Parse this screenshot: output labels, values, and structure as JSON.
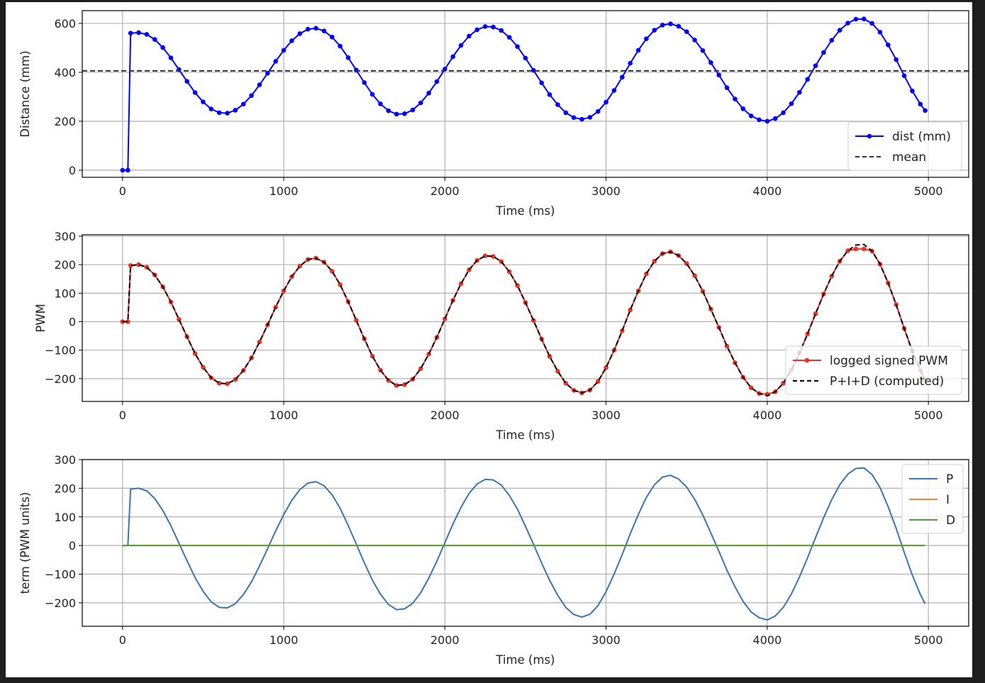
{
  "figure": {
    "background": "#ffffff",
    "frame": "#1e1e1e"
  },
  "chart_data": [
    {
      "type": "line",
      "title": "",
      "xlabel": "Time (ms)",
      "ylabel": "Distance (mm)",
      "xlim": [
        -250,
        5250
      ],
      "ylim": [
        -29,
        652
      ],
      "xticks": [
        0,
        1000,
        2000,
        3000,
        4000,
        5000
      ],
      "yticks": [
        0,
        200,
        400,
        600
      ],
      "grid": true,
      "legend_position": "lower right",
      "x": [
        0,
        33,
        50,
        100,
        150,
        200,
        250,
        300,
        350,
        400,
        450,
        500,
        550,
        600,
        650,
        700,
        750,
        800,
        850,
        900,
        950,
        1000,
        1050,
        1100,
        1150,
        1200,
        1250,
        1300,
        1350,
        1400,
        1450,
        1500,
        1550,
        1600,
        1650,
        1700,
        1750,
        1800,
        1850,
        1900,
        1950,
        2000,
        2050,
        2100,
        2150,
        2200,
        2250,
        2300,
        2350,
        2400,
        2450,
        2500,
        2550,
        2600,
        2650,
        2700,
        2750,
        2800,
        2850,
        2900,
        2950,
        3000,
        3050,
        3100,
        3150,
        3200,
        3250,
        3300,
        3350,
        3400,
        3450,
        3500,
        3550,
        3600,
        3650,
        3700,
        3750,
        3800,
        3850,
        3900,
        3950,
        4000,
        4050,
        4100,
        4150,
        4200,
        4250,
        4300,
        4350,
        4400,
        4450,
        4500,
        4550,
        4600,
        4650,
        4700,
        4750,
        4800,
        4850,
        4900,
        4950,
        4980
      ],
      "series": [
        {
          "name": "dist (mm)",
          "color": "#0000ff",
          "marker": "o",
          "values": [
            0,
            0,
            560,
            562,
            555,
            534,
            501,
            459,
            411,
            363,
            317,
            279,
            250,
            235,
            233,
            245,
            270,
            305,
            349,
            396,
            445,
            490,
            529,
            558,
            576,
            580,
            569,
            544,
            507,
            460,
            409,
            358,
            310,
            271,
            243,
            229,
            231,
            246,
            275,
            315,
            362,
            413,
            464,
            510,
            548,
            574,
            587,
            585,
            571,
            543,
            505,
            458,
            408,
            357,
            309,
            268,
            235,
            215,
            208,
            216,
            240,
            278,
            326,
            380,
            437,
            490,
            537,
            572,
            593,
            598,
            588,
            566,
            532,
            489,
            440,
            389,
            337,
            291,
            251,
            222,
            206,
            200,
            211,
            235,
            272,
            318,
            371,
            427,
            481,
            531,
            572,
            601,
            617,
            618,
            600,
            564,
            512,
            452,
            386,
            324,
            270,
            244
          ]
        },
        {
          "name": "mean",
          "color": "#333333",
          "dash": "dashed",
          "constant": 406
        }
      ]
    },
    {
      "type": "line",
      "xlabel": "Time (ms)",
      "ylabel": "PWM",
      "xlim": [
        -250,
        5250
      ],
      "ylim": [
        -280,
        305
      ],
      "xticks": [
        0,
        1000,
        2000,
        3000,
        4000,
        5000
      ],
      "yticks": [
        -200,
        -100,
        0,
        100,
        200,
        300
      ],
      "grid": true,
      "legend_position": "lower right",
      "series": [
        {
          "name": "logged signed PWM",
          "color": "#ee3322",
          "marker": "o",
          "values": [
            0,
            0,
            197,
            200,
            191,
            164,
            122,
            69,
            8,
            -53,
            -112,
            -160,
            -197,
            -216,
            -218,
            -203,
            -171,
            -127,
            -71,
            -11,
            51,
            108,
            158,
            195,
            218,
            223,
            209,
            177,
            130,
            70,
            5,
            -60,
            -121,
            -170,
            -206,
            -224,
            -221,
            -202,
            -165,
            -114,
            -55,
            10,
            75,
            133,
            182,
            215,
            231,
            229,
            211,
            175,
            127,
            67,
            4,
            -61,
            -122,
            -174,
            -216,
            -241,
            -250,
            -240,
            -210,
            -161,
            -100,
            -32,
            41,
            108,
            168,
            212,
            239,
            245,
            232,
            204,
            161,
            107,
            44,
            -20,
            -86,
            -144,
            -195,
            -232,
            -252,
            -255,
            -246,
            -216,
            -169,
            -110,
            -43,
            28,
            97,
            160,
            212,
            249,
            255,
            255,
            248,
            202,
            136,
            60,
            -24,
            -103,
            -171,
            -204
          ]
        },
        {
          "name": "P+I+D (computed)",
          "color": "#000000",
          "dash": "dashed",
          "values": [
            0,
            0,
            197,
            200,
            191,
            164,
            122,
            69,
            8,
            -53,
            -112,
            -160,
            -197,
            -216,
            -218,
            -203,
            -171,
            -127,
            -71,
            -11,
            51,
            108,
            158,
            195,
            218,
            223,
            209,
            177,
            130,
            70,
            5,
            -60,
            -121,
            -170,
            -206,
            -224,
            -221,
            -202,
            -165,
            -114,
            -55,
            10,
            75,
            133,
            182,
            215,
            231,
            229,
            211,
            175,
            127,
            67,
            4,
            -61,
            -122,
            -174,
            -216,
            -241,
            -250,
            -240,
            -210,
            -161,
            -100,
            -32,
            41,
            108,
            168,
            212,
            239,
            245,
            232,
            204,
            161,
            107,
            44,
            -20,
            -86,
            -144,
            -195,
            -232,
            -252,
            -260,
            -246,
            -216,
            -169,
            -110,
            -43,
            28,
            97,
            160,
            212,
            249,
            269,
            271,
            248,
            202,
            136,
            60,
            -24,
            -103,
            -171,
            -204
          ]
        }
      ]
    },
    {
      "type": "line",
      "xlabel": "Time (ms)",
      "ylabel": "term (PWM units)",
      "xlim": [
        -250,
        5250
      ],
      "ylim": [
        -282,
        300
      ],
      "xticks": [
        0,
        1000,
        2000,
        3000,
        4000,
        5000
      ],
      "yticks": [
        -200,
        -100,
        0,
        100,
        200,
        300
      ],
      "grid": true,
      "legend_position": "upper right",
      "series": [
        {
          "name": "P",
          "color": "#3b75af",
          "values": [
            0,
            0,
            197,
            200,
            191,
            164,
            122,
            69,
            8,
            -53,
            -112,
            -160,
            -197,
            -216,
            -218,
            -203,
            -171,
            -127,
            -71,
            -11,
            51,
            108,
            158,
            195,
            218,
            223,
            209,
            177,
            130,
            70,
            5,
            -60,
            -121,
            -170,
            -206,
            -224,
            -221,
            -202,
            -165,
            -114,
            -55,
            10,
            75,
            133,
            182,
            215,
            231,
            229,
            211,
            175,
            127,
            67,
            4,
            -61,
            -122,
            -174,
            -216,
            -241,
            -250,
            -240,
            -210,
            -161,
            -100,
            -32,
            41,
            108,
            168,
            212,
            239,
            245,
            232,
            204,
            161,
            107,
            44,
            -20,
            -86,
            -144,
            -195,
            -232,
            -252,
            -260,
            -246,
            -216,
            -169,
            -110,
            -43,
            28,
            97,
            160,
            212,
            249,
            269,
            271,
            248,
            202,
            136,
            60,
            -24,
            -103,
            -171,
            -204
          ]
        },
        {
          "name": "I",
          "color": "#ef8636",
          "constant": 0
        },
        {
          "name": "D",
          "color": "#519e3e",
          "constant": 0
        }
      ]
    }
  ],
  "panels": [
    {
      "ylabel": "Distance (mm)",
      "xlabel": "Time (ms)",
      "legend": [
        "dist (mm)",
        "mean"
      ]
    },
    {
      "ylabel": "PWM",
      "xlabel": "Time (ms)",
      "legend": [
        "logged signed PWM",
        "P+I+D (computed)"
      ]
    },
    {
      "ylabel": "term (PWM units)",
      "xlabel": "Time (ms)",
      "legend": [
        "P",
        "I",
        "D"
      ]
    }
  ]
}
